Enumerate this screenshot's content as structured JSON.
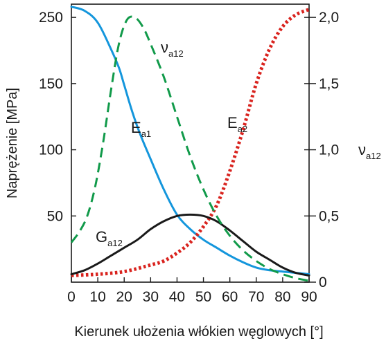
{
  "chart_data": {
    "type": "line",
    "xlabel": "Kierunek ułożenia włókien węglowych [°]",
    "ylabel": "Naprężenie [MPa]",
    "y2label": {
      "main": "ν",
      "sub": "a12"
    },
    "x_ticks": [
      "0",
      "10",
      "20",
      "30",
      "40",
      "50",
      "60",
      "70",
      "80",
      "90"
    ],
    "y_ticks": [
      "50",
      "100",
      "150",
      "250"
    ],
    "y2_ticks": [
      "0",
      "0,5",
      "1,0",
      "1,5",
      "2,0"
    ],
    "xlim": [
      0,
      90
    ],
    "ylim": [
      0,
      210
    ],
    "y2lim": [
      0,
      2.1
    ],
    "grid": false,
    "series": [
      {
        "name": "E_a1",
        "label": {
          "main": "E",
          "sub": "a1"
        },
        "axis": "left",
        "color": "#1496dc",
        "style": "solid",
        "x": [
          0,
          5,
          10,
          15,
          18,
          20,
          23,
          26,
          30,
          35,
          40,
          45,
          50,
          55,
          60,
          65,
          70,
          75,
          80,
          85,
          90
        ],
        "y": [
          208,
          205,
          196,
          176,
          162,
          149,
          129,
          112,
          93,
          70,
          51,
          40,
          32,
          26,
          20,
          15,
          11,
          9,
          8,
          7,
          6
        ]
      },
      {
        "name": "E_a2",
        "label": {
          "main": "E",
          "sub": "a2"
        },
        "axis": "left",
        "color": "#d9231e",
        "style": "dotted",
        "x": [
          0,
          10,
          20,
          30,
          35,
          40,
          45,
          50,
          55,
          60,
          65,
          70,
          75,
          80,
          85,
          90
        ],
        "y": [
          5,
          6,
          8,
          13,
          16,
          22,
          30,
          42,
          58,
          84,
          115,
          150,
          176,
          193,
          202,
          206
        ]
      },
      {
        "name": "G_a12",
        "label": {
          "main": "G",
          "sub": "a12"
        },
        "axis": "left",
        "color": "#1a1a1a",
        "style": "solid",
        "x": [
          0,
          5,
          10,
          15,
          20,
          25,
          30,
          35,
          40,
          45,
          50,
          55,
          60,
          65,
          70,
          75,
          80,
          85,
          90
        ],
        "y": [
          6,
          9,
          14,
          20,
          26,
          32,
          40,
          46,
          50,
          51,
          50,
          46,
          39,
          31,
          23,
          17,
          11,
          7,
          5
        ]
      },
      {
        "name": "nu_a12",
        "label": {
          "main": "ν",
          "sub": "a12"
        },
        "axis": "right",
        "color": "#119a4a",
        "style": "dashed",
        "x": [
          0,
          3,
          6,
          9,
          12,
          15,
          18,
          21,
          24,
          27,
          30,
          35,
          40,
          45,
          50,
          55,
          60,
          65,
          70,
          75,
          80,
          85,
          90
        ],
        "y": [
          0.3,
          0.38,
          0.5,
          0.72,
          1.05,
          1.45,
          1.8,
          1.98,
          2.0,
          1.93,
          1.8,
          1.55,
          1.25,
          0.95,
          0.7,
          0.5,
          0.35,
          0.24,
          0.16,
          0.1,
          0.06,
          0.03,
          0.01
        ]
      }
    ]
  }
}
